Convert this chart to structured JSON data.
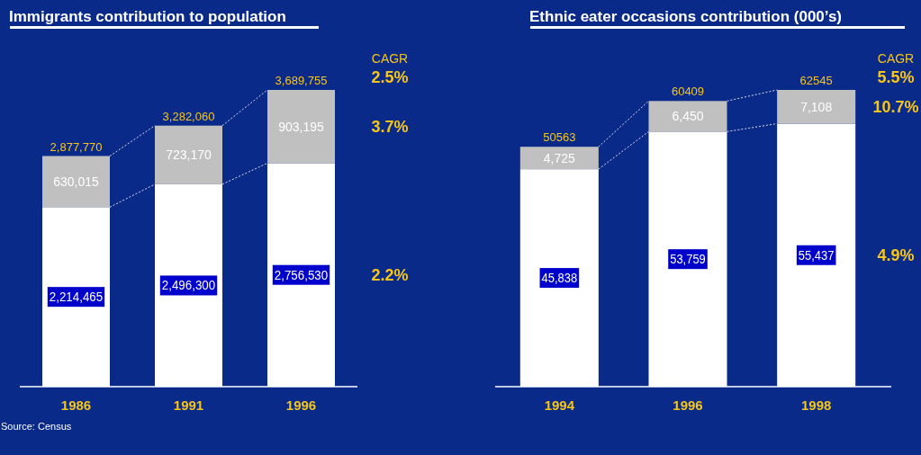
{
  "chart_data": [
    {
      "type": "bar",
      "title": "Immigrants contribution to population",
      "stacked": true,
      "categories": [
        "1986",
        "1991",
        "1996"
      ],
      "series": [
        {
          "color": "#ffffff",
          "values": [
            2214465,
            2496300,
            2756530
          ],
          "value_labels": [
            "2,214,465",
            "2,496,300",
            "2,756,530"
          ]
        },
        {
          "color": "#c0c0c0",
          "values": [
            630015,
            723170,
            903195
          ],
          "value_labels": [
            "630,015",
            "723,170",
            "903,195"
          ]
        }
      ],
      "annotations": [
        "CAGR",
        "2.5%",
        "3.7%",
        "2.2%",
        "Source: Census",
        {
          "text": "2,877,770",
          "x": "1986",
          "y": 2844480
        },
        {
          "text": "3,282,060",
          "x": "1991",
          "y": 3219470
        },
        {
          "text": "3,689,755",
          "x": "1996",
          "y": 3659725
        }
      ]
    },
    {
      "type": "bar",
      "title": "Ethnic eater occasions contribution  (000’s)",
      "stacked": true,
      "categories": [
        "1994",
        "1996",
        "1998"
      ],
      "series": [
        {
          "color": "#ffffff",
          "values": [
            45838,
            53759,
            55437
          ],
          "value_labels": [
            "45,838",
            "53,759",
            "55,437"
          ]
        },
        {
          "color": "#c0c0c0",
          "values": [
            4725,
            6450,
            7108
          ],
          "value_labels": [
            "4,725",
            "6,450",
            "7,108"
          ]
        }
      ],
      "annotations": [
        "CAGR",
        "5.5%",
        "10.7%",
        "4.9%",
        {
          "text": "50563",
          "x": "1994",
          "y": 50563
        },
        {
          "text": "60409",
          "x": "1996",
          "y": 60209
        },
        {
          "text": "62545",
          "x": "1998",
          "y": 62545
        }
      ]
    }
  ]
}
